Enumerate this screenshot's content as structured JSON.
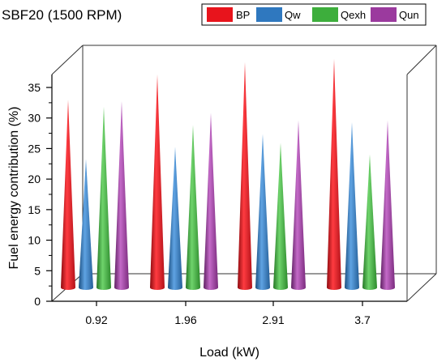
{
  "chart_data": {
    "type": "bar",
    "title": "SBF20 (1500 RPM)",
    "xlabel": "Load (kW)",
    "ylabel": "Fuel energy contribution (%)",
    "categories": [
      "0.92",
      "1.96",
      "2.91",
      "3.7"
    ],
    "yticks": [
      "0",
      "5",
      "10",
      "15",
      "20",
      "25",
      "30",
      "35"
    ],
    "ylim": [
      0,
      35
    ],
    "grid": false,
    "legend_position": "top-right",
    "series": [
      {
        "name": "BP",
        "color": "#e8141c",
        "values": [
          27.5,
          31.2,
          33.0,
          33.5
        ]
      },
      {
        "name": "Qw",
        "color": "#2f78bf",
        "values": [
          18.8,
          20.6,
          22.5,
          24.2
        ]
      },
      {
        "name": "Qexh",
        "color": "#3dae3c",
        "values": [
          26.5,
          23.8,
          21.2,
          19.5
        ]
      },
      {
        "name": "Qun",
        "color": "#9b3a9e",
        "values": [
          27.3,
          25.6,
          24.5,
          24.5
        ]
      }
    ]
  }
}
